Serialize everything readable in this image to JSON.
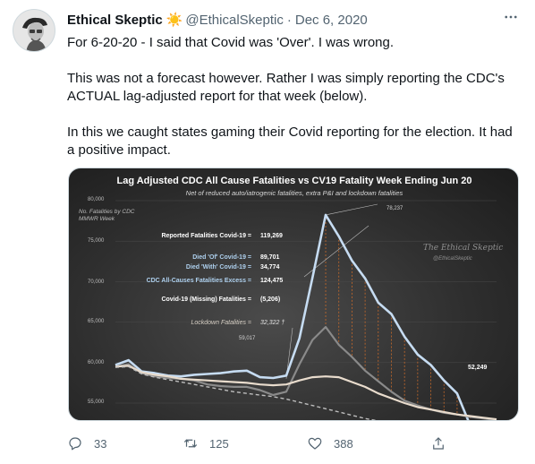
{
  "tweet": {
    "author_name": "Ethical Skeptic",
    "author_emoji": "☀️",
    "handle": "@EthicalSkeptic",
    "separator": "·",
    "date": "Dec 6, 2020",
    "paragraphs": [
      "For 6-20-20 - I said that Covid was 'Over'. I was wrong.",
      "This was not a forecast however. Rather I was simply reporting the CDC's ACTUAL lag-adjusted report for that week (below).",
      "In this we caught states gaming their Covid reporting for the election. It had a positive impact."
    ],
    "more_icon": "more-horizontal-icon",
    "actions": {
      "replies": "33",
      "retweets": "125",
      "likes": "388"
    }
  },
  "image": {
    "title": "Lag Adjusted CDC All Cause Fatalities vs CV19 Fatality Week Ending Jun 20",
    "subtitle": "Net of reduced auto/iatrogenic fatalities, extra P&I and lockdown fatalities",
    "ylabel_line1": "No. Fatalities by CDC",
    "ylabel_line2": "MMWR Week",
    "watermark": "The Ethical Skeptic",
    "watermark_handle": "@EthicalSkeptic",
    "stats": [
      {
        "label": "Reported Fatalities Covid-19 =",
        "value": "119,269"
      },
      {
        "label": "Died 'Of' Covid-19 =",
        "value": "89,701"
      },
      {
        "label": "Died 'With' Covid-19 =",
        "value": "34,774"
      },
      {
        "label": "CDC All-Causes Fatalities Excess =",
        "value": "124,475"
      },
      {
        "label": "Covid-19 (Missing) Fatalities =",
        "value": "(5,206)"
      },
      {
        "label": "Lockdown Fatalities =",
        "value": "32,322 †"
      }
    ],
    "annotations": {
      "peak": "78,237",
      "early": "59,017",
      "late": "52,249"
    },
    "colors": {
      "background": "#2f2f2f",
      "all_cause_line": "#c6dcf2",
      "covid_line": "#8a8a8a",
      "baseline_line": "#e9dccd",
      "expected_line": "#bdbdbd"
    }
  },
  "chart_data": {
    "type": "line",
    "title": "Lag Adjusted CDC All Cause Fatalities vs CV19 Fatality Week Ending Jun 20",
    "subtitle": "Net of reduced auto/iatrogenic fatalities, extra P&I and lockdown fatalities",
    "ylabel": "No. Fatalities by CDC MMWR Week",
    "yticks": [
      "80,000",
      "75,000",
      "70,000",
      "65,000",
      "60,000",
      "55,000"
    ],
    "ylim": [
      53500,
      80500
    ],
    "x_points": 30,
    "series": [
      {
        "values": [
          59700,
          60300,
          58900,
          58700,
          58400,
          58300,
          58500,
          58600,
          58700,
          58900,
          59000,
          58200,
          58100,
          58400,
          63000,
          70500,
          78237,
          75600,
          72600,
          70400,
          67400,
          66000,
          63200,
          61000,
          59700,
          57800,
          56200,
          52249,
          51200,
          50800
        ]
      },
      {
        "values": [
          59500,
          59800,
          58700,
          58300,
          58100,
          58000,
          57800,
          57300,
          57100,
          57000,
          57000,
          56600,
          56000,
          56400,
          59800,
          62800,
          64400,
          62200,
          60700,
          59000,
          57700,
          56400,
          55300,
          54700,
          54200,
          53800,
          53600,
          53300,
          53100,
          52900
        ]
      },
      {
        "values": [
          59500,
          59600,
          58800,
          58500,
          58300,
          58000,
          57900,
          57800,
          57700,
          57600,
          57500,
          57300,
          57200,
          57300,
          57800,
          58200,
          58300,
          58200,
          57600,
          57000,
          56200,
          55600,
          55000,
          54500,
          54200,
          53900,
          53600,
          53400,
          53200,
          53000
        ]
      },
      {
        "values": [
          59400,
          59500,
          58600,
          58200,
          57900,
          57600,
          57300,
          57000,
          56700,
          56400,
          56200,
          56000,
          55800,
          55500,
          55100,
          54700,
          54300,
          53900,
          53500,
          53100,
          52800,
          52500,
          52300,
          52100,
          51900,
          51800,
          51700,
          51600,
          51500,
          51400
        ]
      }
    ]
  }
}
